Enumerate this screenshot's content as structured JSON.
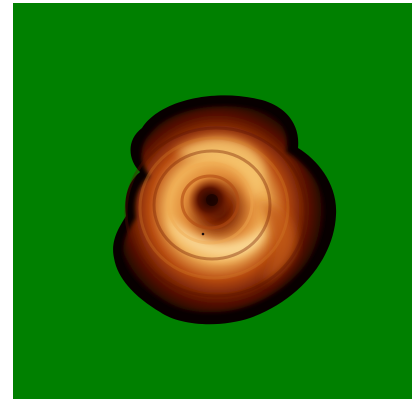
{
  "image": {
    "description_kind": "false-color map",
    "background_color": "#008000",
    "frame_color": "#ffffff",
    "colormap": [
      "#000000",
      "#3a0800",
      "#7a2000",
      "#b84a10",
      "#e08a38",
      "#f8cc7a",
      "#fff2c8"
    ],
    "swirl_arm_count": 3
  }
}
